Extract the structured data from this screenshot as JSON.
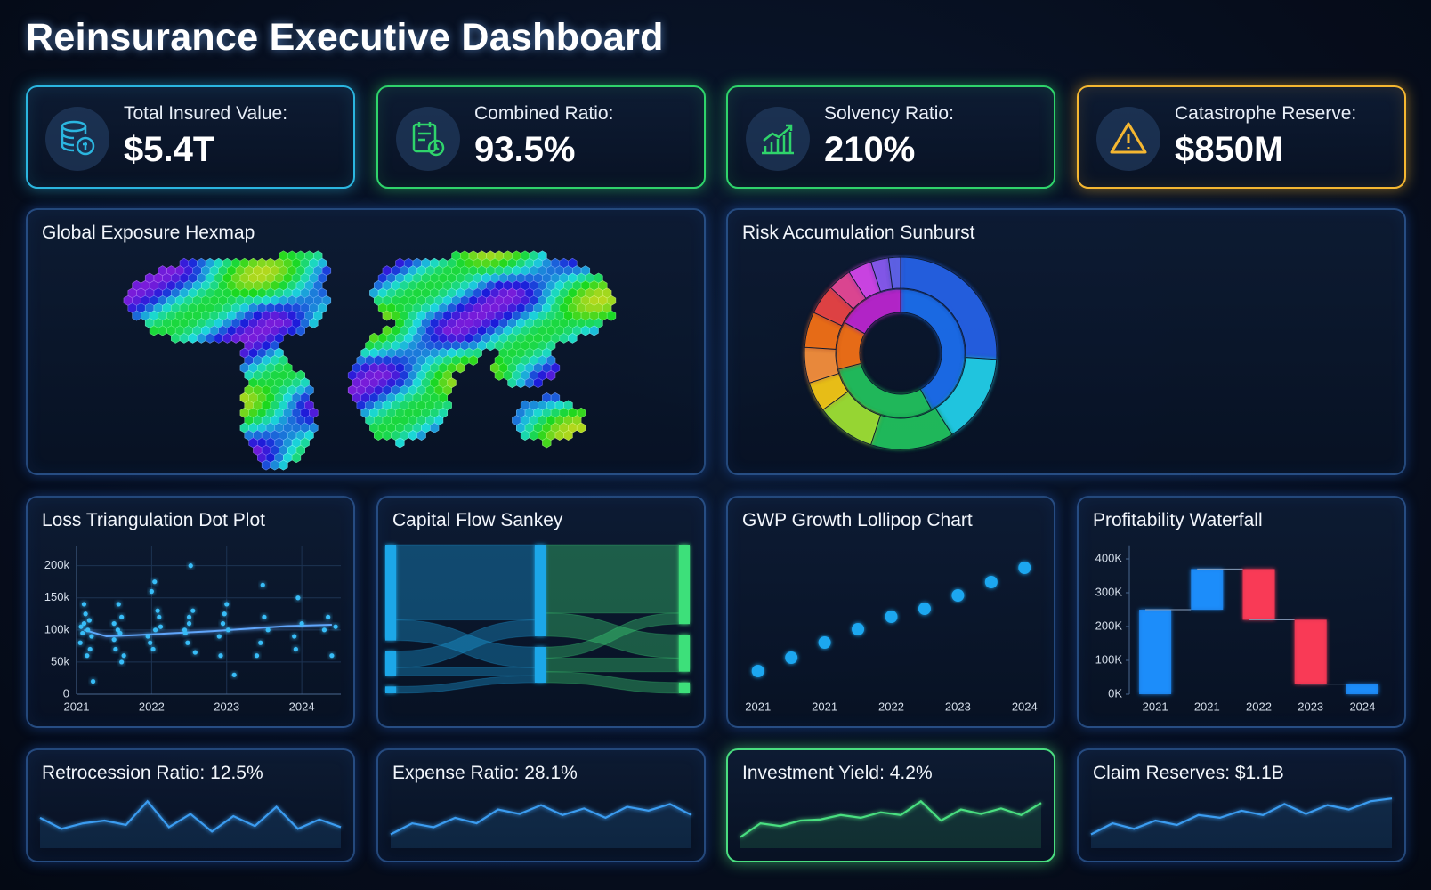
{
  "title": "Reinsurance Executive Dashboard",
  "kpis": [
    {
      "label": "Total Insured Value:",
      "value": "$5.4T",
      "color": "#2bb6e0"
    },
    {
      "label": "Combined Ratio:",
      "value": "93.5%",
      "color": "#2fd46b"
    },
    {
      "label": "Solvency Ratio:",
      "value": "210%",
      "color": "#2fd46b"
    },
    {
      "label": "Catastrophe Reserve:",
      "value": "$850M",
      "color": "#f5b731"
    }
  ],
  "chart_data": [
    {
      "type": "hexmap",
      "title": "Global Exposure Hexmap"
    },
    {
      "type": "sunburst",
      "title": "Risk Accumulation Sunburst",
      "rings": [
        {
          "values": [
            42,
            29,
            12,
            17
          ],
          "colors": [
            "#1d6ff2",
            "#22c55e",
            "#f97316",
            "#c026d3"
          ]
        },
        {
          "values": [
            26,
            15,
            14,
            10,
            5,
            6,
            6,
            5,
            4,
            4,
            3,
            2
          ],
          "colors": [
            "#2563eb",
            "#22d3ee",
            "#22c55e",
            "#a3e635",
            "#facc15",
            "#fb923c",
            "#f97316",
            "#ef4444",
            "#ec4899",
            "#d946ef",
            "#8b5cf6",
            "#6366f1"
          ]
        }
      ]
    },
    {
      "type": "scatter",
      "title": "Loss Triangulation Dot Plot",
      "color": "#38bdf8",
      "x": [
        2021.05,
        2021.08,
        2021.1,
        2021.12,
        2021.15,
        2021.18,
        2021.2,
        2021.1,
        2021.14,
        2021.06,
        2021.17,
        2021.22,
        2021.5,
        2021.55,
        2021.6,
        2021.52,
        2021.58,
        2021.63,
        2021.56,
        2021.5,
        2021.6,
        2021.95,
        2022.0,
        2022.05,
        2022.1,
        2022.02,
        2022.08,
        2021.98,
        2022.12,
        2022.04,
        2022.45,
        2022.5,
        2022.55,
        2022.48,
        2022.52,
        2022.58,
        2022.5,
        2022.44,
        2022.9,
        2022.95,
        2023.0,
        2022.92,
        2023.02,
        2022.97,
        2023.1,
        2023.45,
        2023.5,
        2023.55,
        2023.48,
        2023.4,
        2023.9,
        2023.95,
        2024.0,
        2023.92,
        2024.3,
        2024.35,
        2024.4,
        2024.45
      ],
      "y": [
        80000,
        95000,
        110000,
        125000,
        100000,
        70000,
        90000,
        140000,
        60000,
        105000,
        115000,
        20000,
        85000,
        100000,
        120000,
        70000,
        95000,
        60000,
        140000,
        110000,
        50000,
        90000,
        160000,
        100000,
        120000,
        70000,
        130000,
        80000,
        105000,
        175000,
        95000,
        110000,
        130000,
        80000,
        200000,
        65000,
        120000,
        100000,
        90000,
        110000,
        140000,
        60000,
        100000,
        125000,
        30000,
        80000,
        120000,
        100000,
        170000,
        60000,
        90000,
        150000,
        110000,
        70000,
        100000,
        120000,
        60000,
        105000
      ],
      "trend": {
        "color": "#60a5fa",
        "x": [
          2021.1,
          2021.4,
          2021.8,
          2022.3,
          2022.8,
          2023.3,
          2023.8,
          2024.4
        ],
        "y": [
          100000,
          90000,
          92000,
          95000,
          98000,
          102000,
          106000,
          108000
        ]
      },
      "xlim": [
        2021,
        2024.52
      ],
      "xticks": [
        2021,
        2022,
        2023,
        2024
      ],
      "ylim": [
        0,
        230000
      ],
      "yticks": [
        0,
        {
          "value": 50000,
          "label": "50k"
        },
        {
          "value": 100000,
          "label": "100k"
        },
        {
          "value": 150000,
          "label": "150k"
        },
        {
          "value": 200000,
          "label": "200k"
        }
      ],
      "grid": true
    },
    {
      "type": "sankey",
      "title": "Capital Flow Sankey",
      "columns": [
        [
          0,
          1,
          2
        ],
        [
          3,
          4
        ],
        [
          5,
          6,
          7
        ]
      ],
      "column_colors": [
        "#1ea7e8",
        "#1ea7e8",
        "#3ee07a"
      ],
      "links": [
        {
          "source": 0,
          "target": 3,
          "value": 55
        },
        {
          "source": 0,
          "target": 4,
          "value": 15
        },
        {
          "source": 1,
          "target": 3,
          "value": 12
        },
        {
          "source": 1,
          "target": 4,
          "value": 6
        },
        {
          "source": 2,
          "target": 4,
          "value": 5
        },
        {
          "source": 3,
          "target": 5,
          "value": 50
        },
        {
          "source": 3,
          "target": 6,
          "value": 17
        },
        {
          "source": 4,
          "target": 5,
          "value": 8
        },
        {
          "source": 4,
          "target": 6,
          "value": 10
        },
        {
          "source": 4,
          "target": 7,
          "value": 8
        }
      ]
    },
    {
      "type": "lollipop",
      "title": "GWP Growth Lollipop Chart",
      "color": "#1ea7f0",
      "categories": [
        "2021",
        null,
        "2021",
        null,
        "2022",
        null,
        "2023",
        null,
        "2024"
      ],
      "values": [
        26,
        41,
        58,
        73,
        87,
        96,
        111,
        126,
        142
      ],
      "ylim": [
        0,
        160
      ]
    },
    {
      "type": "waterfall",
      "title": "Profitability Waterfall",
      "categories": [
        "2021",
        "2021",
        "2022",
        "2023",
        "2024"
      ],
      "values": [
        250000,
        120000,
        -150000,
        -190000,
        30000
      ],
      "measure": [
        "absolute",
        "relative",
        "relative",
        "relative",
        "total"
      ],
      "color_positive": "#1e8fff",
      "color_negative": "#ff3b57",
      "ylim": [
        0,
        440000
      ],
      "yticks": [
        {
          "value": 0,
          "label": "0K"
        },
        {
          "value": 100000,
          "label": "100K"
        },
        {
          "value": 200000,
          "label": "200K"
        },
        {
          "value": 300000,
          "label": "300K"
        },
        {
          "value": 400000,
          "label": "400K"
        }
      ]
    },
    {
      "type": "sparkline",
      "title": "Retrocession Ratio: 12.5%",
      "color": "#3b9cf0",
      "highlight": false,
      "values": [
        55,
        35,
        45,
        50,
        42,
        85,
        38,
        62,
        30,
        58,
        40,
        75,
        35,
        52,
        38
      ],
      "ylim": [
        0,
        100
      ]
    },
    {
      "type": "sparkline",
      "title": "Expense Ratio: 28.1%",
      "color": "#3b9cf0",
      "highlight": false,
      "values": [
        25,
        45,
        38,
        55,
        45,
        70,
        62,
        78,
        60,
        72,
        55,
        75,
        68,
        80,
        60
      ],
      "ylim": [
        0,
        100
      ]
    },
    {
      "type": "sparkline",
      "title": "Investment Yield: 4.2%",
      "color": "#4ade80",
      "highlight": true,
      "values": [
        20,
        45,
        40,
        50,
        52,
        60,
        55,
        65,
        60,
        85,
        50,
        70,
        62,
        72,
        60,
        82
      ],
      "ylim": [
        0,
        100
      ]
    },
    {
      "type": "sparkline",
      "title": "Claim Reserves: $1.1B",
      "color": "#3b9cf0",
      "highlight": false,
      "values": [
        25,
        45,
        35,
        50,
        42,
        60,
        55,
        68,
        60,
        80,
        62,
        78,
        70,
        85,
        90
      ],
      "ylim": [
        0,
        100
      ]
    }
  ]
}
